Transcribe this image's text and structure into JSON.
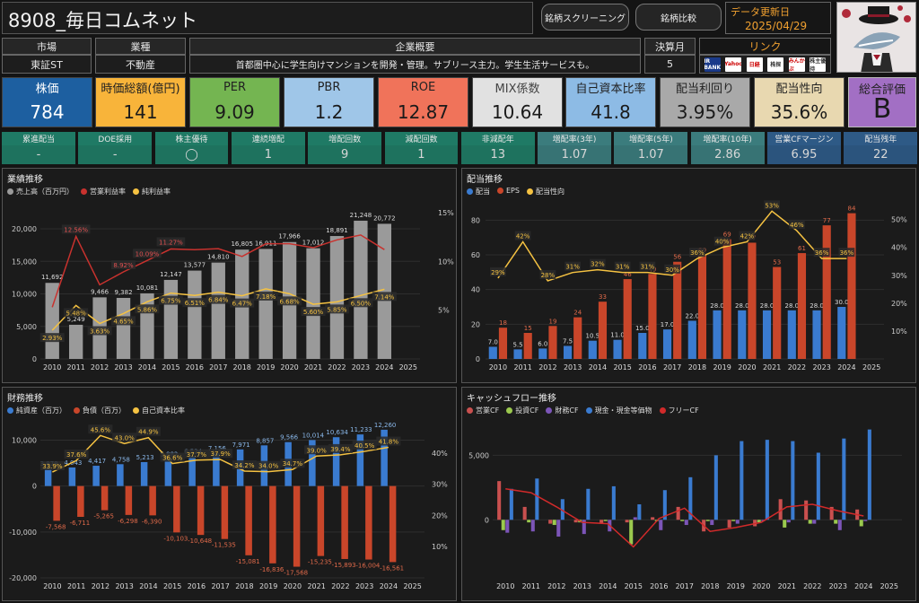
{
  "header": {
    "title": "8908_毎日コムネット",
    "btn_screening": "銘柄スクリーニング",
    "btn_compare": "銘柄比較",
    "update_label": "データ更新日",
    "update_date": "2025/04/29"
  },
  "info": {
    "market_label": "市場",
    "market_value": "東証ST",
    "industry_label": "業種",
    "industry_value": "不動産",
    "summary_label": "企業概要",
    "summary_value": "首都圏中心に学生向けマンションを開発・管理。サブリース主力。学生生活サービスも。",
    "fiscal_label": "決算月",
    "fiscal_value": "5",
    "link_label": "リンク",
    "links": [
      "IR BANK",
      "Yahoo",
      "日経",
      "株探",
      "みんかぶ",
      "株主優待"
    ]
  },
  "metrics": [
    {
      "label": "株価",
      "value": "784",
      "bg": "#1d5fa0",
      "fg": "#ffffff",
      "lfg": "#ffffff"
    },
    {
      "label": "時価総額(億円)",
      "value": "141",
      "bg": "#f8b43a",
      "fg": "#1a1a1a",
      "lfg": "#222222"
    },
    {
      "label": "PER",
      "value": "9.09",
      "bg": "#74b551",
      "fg": "#1a1a1a",
      "lfg": "#222222"
    },
    {
      "label": "PBR",
      "value": "1.2",
      "bg": "#9fc6e8",
      "fg": "#1a1a1a",
      "lfg": "#222222"
    },
    {
      "label": "ROE",
      "value": "12.87",
      "bg": "#f0735a",
      "fg": "#1a1a1a",
      "lfg": "#222222"
    },
    {
      "label": "MIX係数",
      "value": "10.64",
      "bg": "#e1e1e1",
      "fg": "#1a1a1a",
      "lfg": "#444444"
    },
    {
      "label": "自己資本比率",
      "value": "41.8",
      "bg": "#8dbbe5",
      "fg": "#1a1a1a",
      "lfg": "#222222"
    },
    {
      "label": "配当利回り",
      "value": "3.95%",
      "bg": "#a9a9a9",
      "fg": "#1a1a1a",
      "lfg": "#222222"
    },
    {
      "label": "配当性向",
      "value": "35.6%",
      "bg": "#e8d8b0",
      "fg": "#1a1a1a",
      "lfg": "#222222"
    }
  ],
  "score": {
    "label": "総合評価",
    "value": "B",
    "bg": "#a26fc4"
  },
  "dividend_stats": [
    {
      "label": "累進配当",
      "value": "-",
      "bg": "#1f7a65"
    },
    {
      "label": "DOE採用",
      "value": "-",
      "bg": "#1f7a65"
    },
    {
      "label": "株主優待",
      "value": "◯",
      "bg": "#1f7a65"
    },
    {
      "label": "連続増配",
      "value": "1",
      "bg": "#1f7a65"
    },
    {
      "label": "増配回数",
      "value": "9",
      "bg": "#1f7a65"
    },
    {
      "label": "減配回数",
      "value": "1",
      "bg": "#1f7a65"
    },
    {
      "label": "非減配年",
      "value": "13",
      "bg": "#1f7a65"
    },
    {
      "label": "増配率(3年)",
      "value": "1.07",
      "bg": "#3b7c7d"
    },
    {
      "label": "増配率(5年)",
      "value": "1.07",
      "bg": "#3b7c7d"
    },
    {
      "label": "増配率(10年)",
      "value": "2.86",
      "bg": "#3b7c7d"
    },
    {
      "label": "営業CFマージン",
      "value": "6.95",
      "bg": "#2e5a86"
    },
    {
      "label": "配当残年",
      "value": "22",
      "bg": "#2e5a86"
    }
  ],
  "chart_data": [
    {
      "type": "bar",
      "title": "業績推移",
      "categories": [
        "2010",
        "2011",
        "2012",
        "2013",
        "2014",
        "2015",
        "2016",
        "2017",
        "2018",
        "2019",
        "2020",
        "2021",
        "2022",
        "2023",
        "2024",
        "2025"
      ],
      "legend": [
        "売上高（百万円）",
        "営業利益率",
        "純利益率"
      ],
      "colors": [
        "#9a9a9a",
        "#c8322e",
        "#f5c242"
      ],
      "series": [
        {
          "name": "売上高（百万円）",
          "type": "bar",
          "values": [
            11692,
            5249,
            9466,
            9382,
            10081,
            12147,
            13577,
            14810,
            16805,
            16911,
            17966,
            17012,
            18891,
            21248,
            20772,
            null
          ]
        },
        {
          "name": "営業利益率",
          "type": "line",
          "values": [
            5.3,
            12.56,
            7.6,
            8.92,
            10.09,
            11.27,
            11.2,
            11.3,
            10.5,
            11.8,
            11.8,
            11.4,
            12.2,
            12.7,
            11.2,
            null
          ]
        },
        {
          "name": "純利益率",
          "type": "line",
          "values": [
            2.93,
            5.48,
            3.63,
            4.65,
            5.86,
            6.75,
            6.51,
            6.84,
            6.47,
            7.18,
            6.68,
            5.6,
            5.85,
            6.5,
            7.14,
            null
          ]
        }
      ],
      "bar_labels": [
        "11,692",
        "5,249",
        "9,466",
        "9,382",
        "10,081",
        "12,147",
        "13,577",
        "14,810",
        "16,805",
        "16,911",
        "17,966",
        "17,012",
        "18,891",
        "21,248",
        "20,772",
        ""
      ],
      "line1_labels": [
        "",
        "12.56%",
        "",
        "8.92%",
        "10.09%",
        "11.27%",
        "",
        "",
        "",
        "",
        "",
        "",
        "",
        "",
        ""
      ],
      "line2_labels": [
        "2.93%",
        "5.48%",
        "3.63%",
        "4.65%",
        "5.86%",
        "6.75%",
        "6.51%",
        "6.84%",
        "6.47%",
        "7.18%",
        "6.68%",
        "5.60%",
        "5.85%",
        "6.50%",
        "7.14%"
      ],
      "y_left_ticks": [
        "0",
        "5,000",
        "10,000",
        "15,000",
        "20,000"
      ],
      "y_right_ticks": [
        "5%",
        "10%",
        "15%"
      ],
      "ylim_left": [
        0,
        24000
      ],
      "ylim_right": [
        0,
        16
      ]
    },
    {
      "type": "bar",
      "title": "配当推移",
      "categories": [
        "2010",
        "2011",
        "2012",
        "2013",
        "2014",
        "2015",
        "2016",
        "2017",
        "2018",
        "2019",
        "2020",
        "2021",
        "2022",
        "2023",
        "2024",
        "2025"
      ],
      "legend": [
        "配当",
        "EPS",
        "配当性向"
      ],
      "colors": [
        "#3a7bd0",
        "#c9462a",
        "#f5c242"
      ],
      "series": [
        {
          "name": "配当",
          "type": "bar",
          "values": [
            7.0,
            5.5,
            6.0,
            7.5,
            10.5,
            11.0,
            15.0,
            17.0,
            22.0,
            28.0,
            28.0,
            28.0,
            28.0,
            28.0,
            30.0,
            null
          ]
        },
        {
          "name": "EPS",
          "type": "bar",
          "values": [
            18,
            15,
            19,
            24,
            33,
            46,
            49,
            56,
            60,
            69,
            67,
            53,
            61,
            77,
            84,
            null
          ]
        },
        {
          "name": "配当性向",
          "type": "line",
          "values": [
            29,
            42,
            28,
            31,
            32,
            31,
            31,
            30,
            36,
            40,
            42,
            53,
            46,
            36,
            36,
            null
          ]
        }
      ],
      "div_labels": [
        "7.0",
        "5.5",
        "6.0",
        "7.5",
        "10.5",
        "11.0",
        "15.0",
        "17.0",
        "22.0",
        "28.0",
        "28.0",
        "28.0",
        "28.0",
        "28.0",
        "30.0"
      ],
      "eps_labels": [
        "18",
        "15",
        "19",
        "24",
        "33",
        "46",
        "49",
        "56",
        "60",
        "69",
        "67",
        "53",
        "61",
        "77",
        "84"
      ],
      "ratio_labels": [
        "29%",
        "42%",
        "28%",
        "31%",
        "32%",
        "31%",
        "31%",
        "30%",
        "36%",
        "40%",
        "42%",
        "53%",
        "46%",
        "36%",
        "36%"
      ],
      "y_left_ticks": [
        "0",
        "20",
        "40",
        "60",
        "80"
      ],
      "y_right_ticks": [
        "10%",
        "20%",
        "30%",
        "40%",
        "50%"
      ],
      "ylim_left": [
        0,
        90
      ],
      "ylim_right": [
        0,
        56
      ]
    },
    {
      "type": "bar",
      "title": "財務推移",
      "categories": [
        "2010",
        "2011",
        "2012",
        "2013",
        "2014",
        "2015",
        "2016",
        "2017",
        "2018",
        "2019",
        "2020",
        "2021",
        "2022",
        "2023",
        "2024",
        "2025"
      ],
      "legend": [
        "純資産（百万）",
        "負債（百万）",
        "自己資本比率"
      ],
      "colors": [
        "#3a7bd0",
        "#c9462a",
        "#f5c242"
      ],
      "series": [
        {
          "name": "純資産（百万）",
          "type": "bar",
          "values": [
            3878,
            4043,
            4417,
            4758,
            5213,
            5882,
            6524,
            7156,
            7971,
            8857,
            9566,
            10014,
            10634,
            11233,
            12260,
            null
          ]
        },
        {
          "name": "負債（百万）",
          "type": "bar",
          "values": [
            -7568,
            -6711,
            -5265,
            -6298,
            -6390,
            -10103,
            -10648,
            -11535,
            -15081,
            -16836,
            -17568,
            -15235,
            -15893,
            -16004,
            -16561,
            null
          ]
        },
        {
          "name": "自己資本比率",
          "type": "line",
          "values": [
            33.9,
            37.6,
            45.6,
            43.0,
            44.9,
            36.6,
            37.7,
            37.9,
            34.2,
            34.0,
            34.7,
            39.0,
            39.4,
            40.5,
            41.8,
            null
          ]
        }
      ],
      "pos_labels": [
        "3,878",
        "4,043",
        "4,417",
        "4,758",
        "5,213",
        "5,882",
        "6,524",
        "7,156",
        "7,971",
        "8,857",
        "9,566",
        "10,014",
        "10,634",
        "11,233",
        "12,260"
      ],
      "neg_labels": [
        "-7,568",
        "-6,711",
        "-5,265",
        "-6,298",
        "-6,390",
        "-10,103",
        "-10,648",
        "-11,535",
        "-15,081",
        "-16,836",
        "-17,568",
        "-15,235",
        "-15,893",
        "-16,004",
        "-16,561"
      ],
      "ratio_labels": [
        "33.9%",
        "37.6%",
        "45.6%",
        "43.0%",
        "44.9%",
        "36.6%",
        "37.7%",
        "37.9%",
        "34.2%",
        "34.0%",
        "34.7%",
        "39.0%",
        "39.4%",
        "40.5%",
        "41.8%"
      ],
      "y_left_ticks": [
        "-20,000",
        "-10,000",
        "0",
        "10,000"
      ],
      "y_right_ticks": [
        "10%",
        "20%",
        "30%",
        "40%"
      ],
      "ylim_left": [
        -20000,
        14000
      ],
      "ylim_right": [
        0,
        50
      ]
    },
    {
      "type": "bar",
      "title": "キャッシュフロー推移",
      "categories": [
        "2010",
        "2011",
        "2012",
        "2013",
        "2014",
        "2015",
        "2016",
        "2017",
        "2018",
        "2019",
        "2020",
        "2021",
        "2022",
        "2023",
        "2024",
        "2025"
      ],
      "legend": [
        "営業CF",
        "投資CF",
        "財務CF",
        "現金・現金等価物",
        "フリーCF"
      ],
      "colors": [
        "#c9504f",
        "#9bc94e",
        "#7c55b8",
        "#3a7bd0",
        "#d12a2a"
      ],
      "series": [
        {
          "name": "営業CF",
          "type": "bar",
          "values": [
            3000,
            1000,
            -300,
            -200,
            -300,
            -200,
            200,
            1000,
            -900,
            -600,
            -500,
            1600,
            1500,
            1000,
            800,
            null
          ]
        },
        {
          "name": "投資CF",
          "type": "bar",
          "values": [
            -800,
            -200,
            -400,
            -200,
            -100,
            -1900,
            -100,
            -100,
            -100,
            -100,
            -200,
            -600,
            -300,
            -300,
            -500,
            null
          ]
        },
        {
          "name": "財務CF",
          "type": "bar",
          "values": [
            -1000,
            -900,
            -1300,
            -1100,
            -900,
            200,
            -800,
            -400,
            -400,
            -300,
            -100,
            -200,
            -300,
            -800,
            -100,
            null
          ]
        },
        {
          "name": "現金・現金等価物",
          "type": "bar",
          "values": [
            2400,
            3200,
            1600,
            2400,
            2600,
            1200,
            2300,
            3300,
            5000,
            6100,
            6200,
            6100,
            5200,
            6300,
            7000,
            null
          ]
        },
        {
          "name": "フリーCF",
          "type": "line",
          "values": [
            2400,
            2100,
            1000,
            -200,
            -300,
            -2100,
            100,
            900,
            -900,
            -600,
            -200,
            1000,
            1200,
            700,
            300,
            null
          ]
        }
      ],
      "y_left_ticks": [
        "0",
        "5,000"
      ],
      "ylim_left": [
        -4500,
        7600
      ]
    }
  ]
}
